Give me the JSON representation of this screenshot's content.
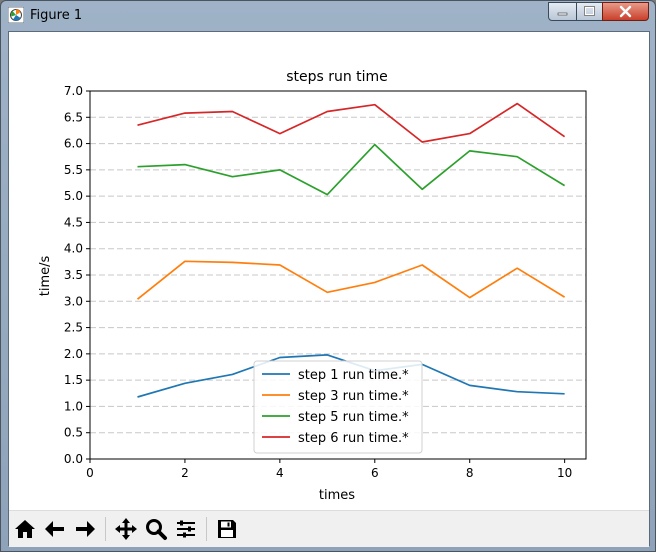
{
  "window": {
    "title": "Figure 1"
  },
  "icons": {
    "app": "matplotlib-icon",
    "minimize": "minimize-icon",
    "maximize": "maximize-icon",
    "close": "close-icon"
  },
  "toolbar": {
    "buttons": [
      "home-icon",
      "back-icon",
      "forward-icon",
      "pan-icon",
      "zoom-icon",
      "configure-subplots-icon",
      "save-icon"
    ]
  },
  "chart_data": {
    "type": "line",
    "title": "steps run time",
    "xlabel": "times",
    "ylabel": "time/s",
    "xlim": [
      0,
      10.45
    ],
    "ylim": [
      0,
      7.0
    ],
    "xticks": [
      0,
      2,
      4,
      6,
      8,
      10
    ],
    "yticks": [
      0.0,
      0.5,
      1.0,
      1.5,
      2.0,
      2.5,
      3.0,
      3.5,
      4.0,
      4.5,
      5.0,
      5.5,
      6.0,
      6.5,
      7.0
    ],
    "ytick_labels": [
      "0.0",
      "0.5",
      "1.0",
      "1.5",
      "2.0",
      "2.5",
      "3.0",
      "3.5",
      "4.0",
      "4.5",
      "5.0",
      "5.5",
      "6.0",
      "6.5",
      "7.0"
    ],
    "grid": "horizontal dashed",
    "legend_position": "lower center",
    "x": [
      1,
      2,
      3,
      4,
      5,
      6,
      7,
      8,
      9,
      10
    ],
    "series": [
      {
        "name": "step 1 run time.*",
        "color": "#1f77b4",
        "values": [
          1.18,
          1.44,
          1.61,
          1.93,
          1.98,
          1.68,
          1.8,
          1.4,
          1.28,
          1.24
        ]
      },
      {
        "name": "step 3 run time.*",
        "color": "#ff7f0e",
        "values": [
          3.04,
          3.76,
          3.74,
          3.69,
          3.17,
          3.36,
          3.69,
          3.07,
          3.63,
          3.08
        ]
      },
      {
        "name": "step 5 run time.*",
        "color": "#2ca02c",
        "values": [
          5.56,
          5.6,
          5.37,
          5.5,
          5.03,
          5.98,
          5.13,
          5.86,
          5.75,
          5.2
        ]
      },
      {
        "name": "step 6 run time.*",
        "color": "#d62728",
        "values": [
          6.35,
          6.58,
          6.61,
          6.19,
          6.61,
          6.74,
          6.03,
          6.19,
          6.76,
          6.13
        ]
      }
    ]
  }
}
